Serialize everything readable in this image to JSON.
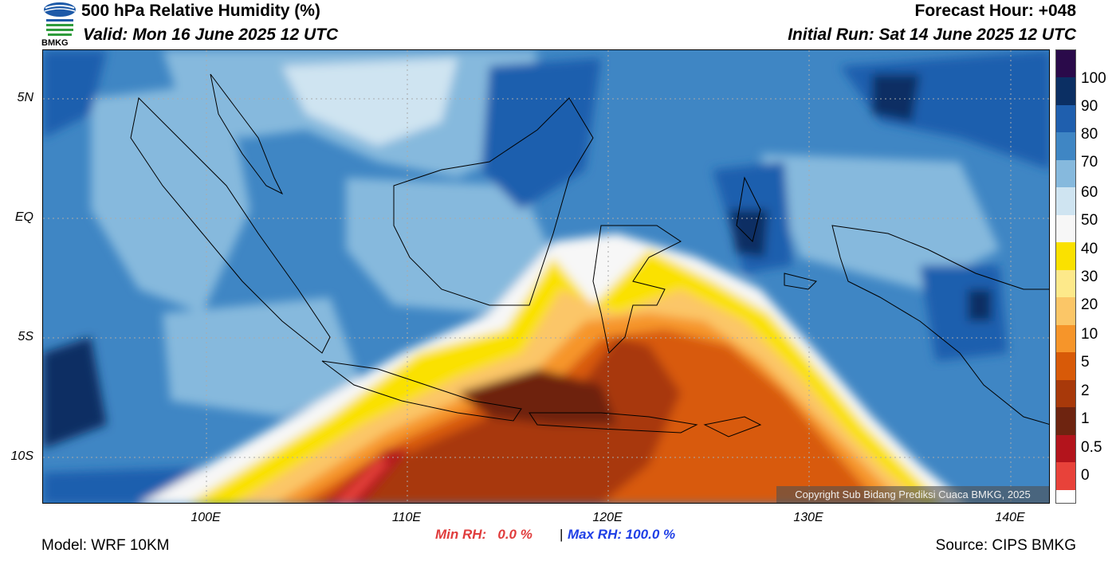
{
  "header": {
    "title": "500 hPa Relative Humidity (%)",
    "valid": "Valid: Mon 16 June 2025 12 UTC",
    "forecast_hour": "Forecast Hour: +048",
    "initial_run": "Initial Run: Sat 14 June 2025 12 UTC",
    "logo_text": "BMKG"
  },
  "map": {
    "lat_labels": [
      "5N",
      "EQ",
      "5S",
      "10S"
    ],
    "lon_labels": [
      "100E",
      "110E",
      "120E",
      "130E",
      "140E"
    ],
    "copyright": "Copyright Sub Bidang Prediksi Cuaca BMKG, 2025"
  },
  "colorbar": {
    "labels": [
      "100",
      "90",
      "80",
      "70",
      "60",
      "50",
      "40",
      "30",
      "20",
      "10",
      "5",
      "2",
      "1",
      "0.5",
      "0"
    ],
    "colors": [
      "#2a0a4a",
      "#0b2f63",
      "#1f5fae",
      "#3f86c4",
      "#86b9dd",
      "#cfe4f1",
      "#f7f7f7",
      "#fae100",
      "#fde98a",
      "#fbc667",
      "#f6952a",
      "#d85a08",
      "#a8390a",
      "#6e2410",
      "#b3141c",
      "#e8423a"
    ]
  },
  "footer": {
    "min_rh": "Min RH:   0.0 %",
    "separator": "|",
    "max_rh": "Max RH: 100.0 %",
    "model": "Model: WRF 10KM",
    "source": "Source: CIPS BMKG"
  }
}
